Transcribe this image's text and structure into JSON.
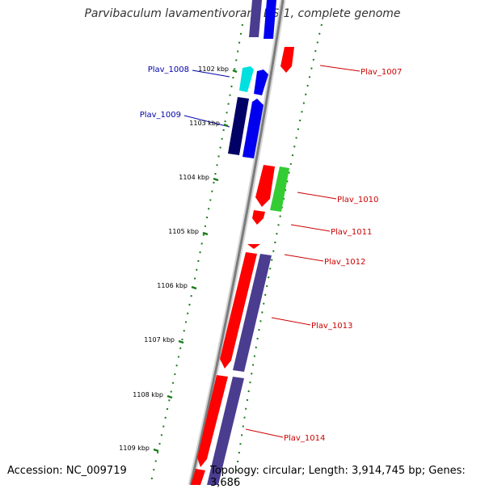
{
  "title": "Parvibaculum lavamentivorans DS-1, complete genome",
  "footer": {
    "accession": "Accession: NC_009719",
    "topology": "Topology: circular; Length: 3,914,745 bp; Genes: 3,686"
  },
  "colors": {
    "label_forward": "#0000aa",
    "label_reverse": "#cc0000",
    "backbone": "#8a8a8a",
    "tick": "#1a7a1a"
  },
  "ticks": [
    "1102 kbp",
    "1103 kbp",
    "1104 kbp",
    "1105 kbp",
    "1106 kbp",
    "1107 kbp",
    "1108 kbp",
    "1109 kbp"
  ],
  "genes": [
    {
      "label": "Plav_1007",
      "strand": "reverse",
      "color": "#ff0000"
    },
    {
      "label": "Plav_1008",
      "strand": "forward",
      "color": "#00e0e0"
    },
    {
      "label": "Plav_1009",
      "strand": "forward",
      "color": "#000066"
    },
    {
      "label": "Plav_1010",
      "strand": "reverse",
      "color": "#33cc33"
    },
    {
      "label": "Plav_1011",
      "strand": "reverse",
      "color": "#ff0000"
    },
    {
      "label": "Plav_1012",
      "strand": "reverse",
      "color": "#ff0000"
    },
    {
      "label": "Plav_1013",
      "strand": "reverse",
      "color": "#4a3d8f"
    },
    {
      "label": "Plav_1014",
      "strand": "reverse",
      "color": "#4a3d8f"
    }
  ]
}
